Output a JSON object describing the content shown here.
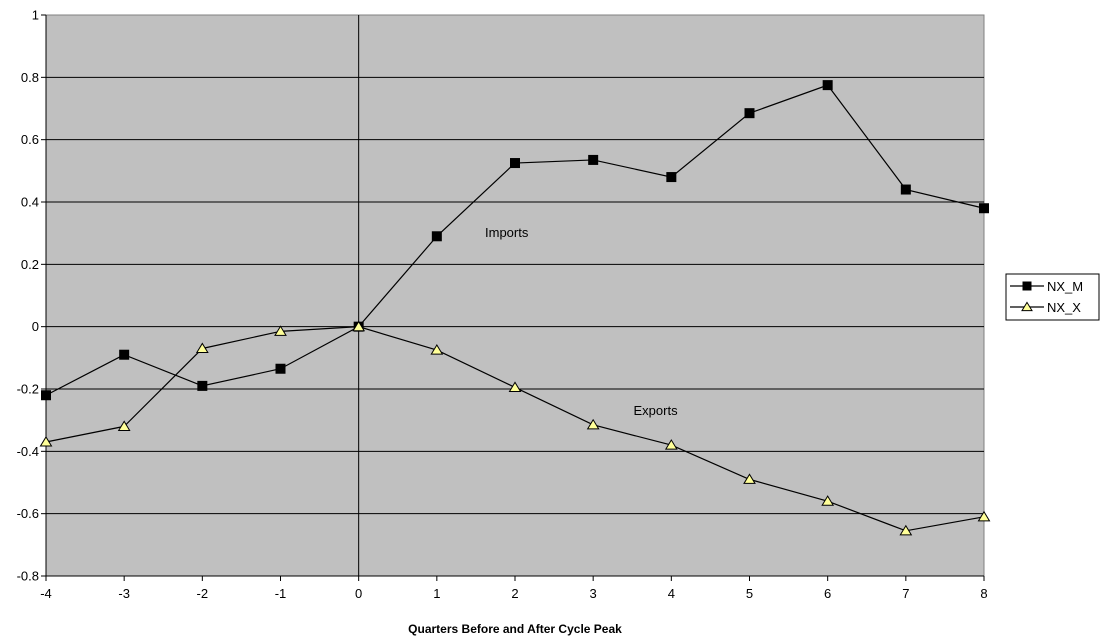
{
  "chart_data": {
    "type": "line",
    "title": "",
    "xlabel": "Quarters Before and After Cycle Peak",
    "ylabel": "",
    "x": [
      -4,
      -3,
      -2,
      -1,
      0,
      1,
      2,
      3,
      4,
      5,
      6,
      7,
      8
    ],
    "x_tick_labels": [
      "-4",
      "-3",
      "-2",
      "-1",
      "0",
      "1",
      "2",
      "3",
      "4",
      "5",
      "6",
      "7",
      "8"
    ],
    "xlim": [
      -4,
      8
    ],
    "ylim": [
      -0.8,
      1
    ],
    "y_ticks": [
      1,
      0.8,
      0.6,
      0.4,
      0.2,
      0,
      -0.2,
      -0.4,
      -0.6,
      -0.8
    ],
    "y_tick_labels": [
      "1",
      "0.8",
      "0.6",
      "0.4",
      "0.2",
      "0",
      "-0.2",
      "-0.4",
      "-0.6",
      "-0.8"
    ],
    "grid": "horizontal",
    "plot_background": "#c0c0c0",
    "legend_position": "right",
    "series": [
      {
        "name": "NX_M",
        "marker": "square",
        "color": "#000000",
        "marker_fill": "#000000",
        "values": [
          -0.22,
          -0.09,
          -0.19,
          -0.135,
          0.0,
          0.29,
          0.525,
          0.535,
          0.48,
          0.685,
          0.775,
          0.44,
          0.38
        ]
      },
      {
        "name": "NX_X",
        "marker": "triangle",
        "color": "#000000",
        "marker_fill": "#ffff99",
        "values": [
          -0.37,
          -0.32,
          -0.07,
          -0.015,
          0.0,
          -0.075,
          -0.195,
          -0.315,
          -0.38,
          -0.49,
          -0.56,
          -0.655,
          -0.61
        ]
      }
    ],
    "annotations": [
      {
        "text": "Imports",
        "x": 2.0,
        "y": 0.3
      },
      {
        "text": "Exports",
        "x": 3.9,
        "y": -0.27
      }
    ]
  }
}
